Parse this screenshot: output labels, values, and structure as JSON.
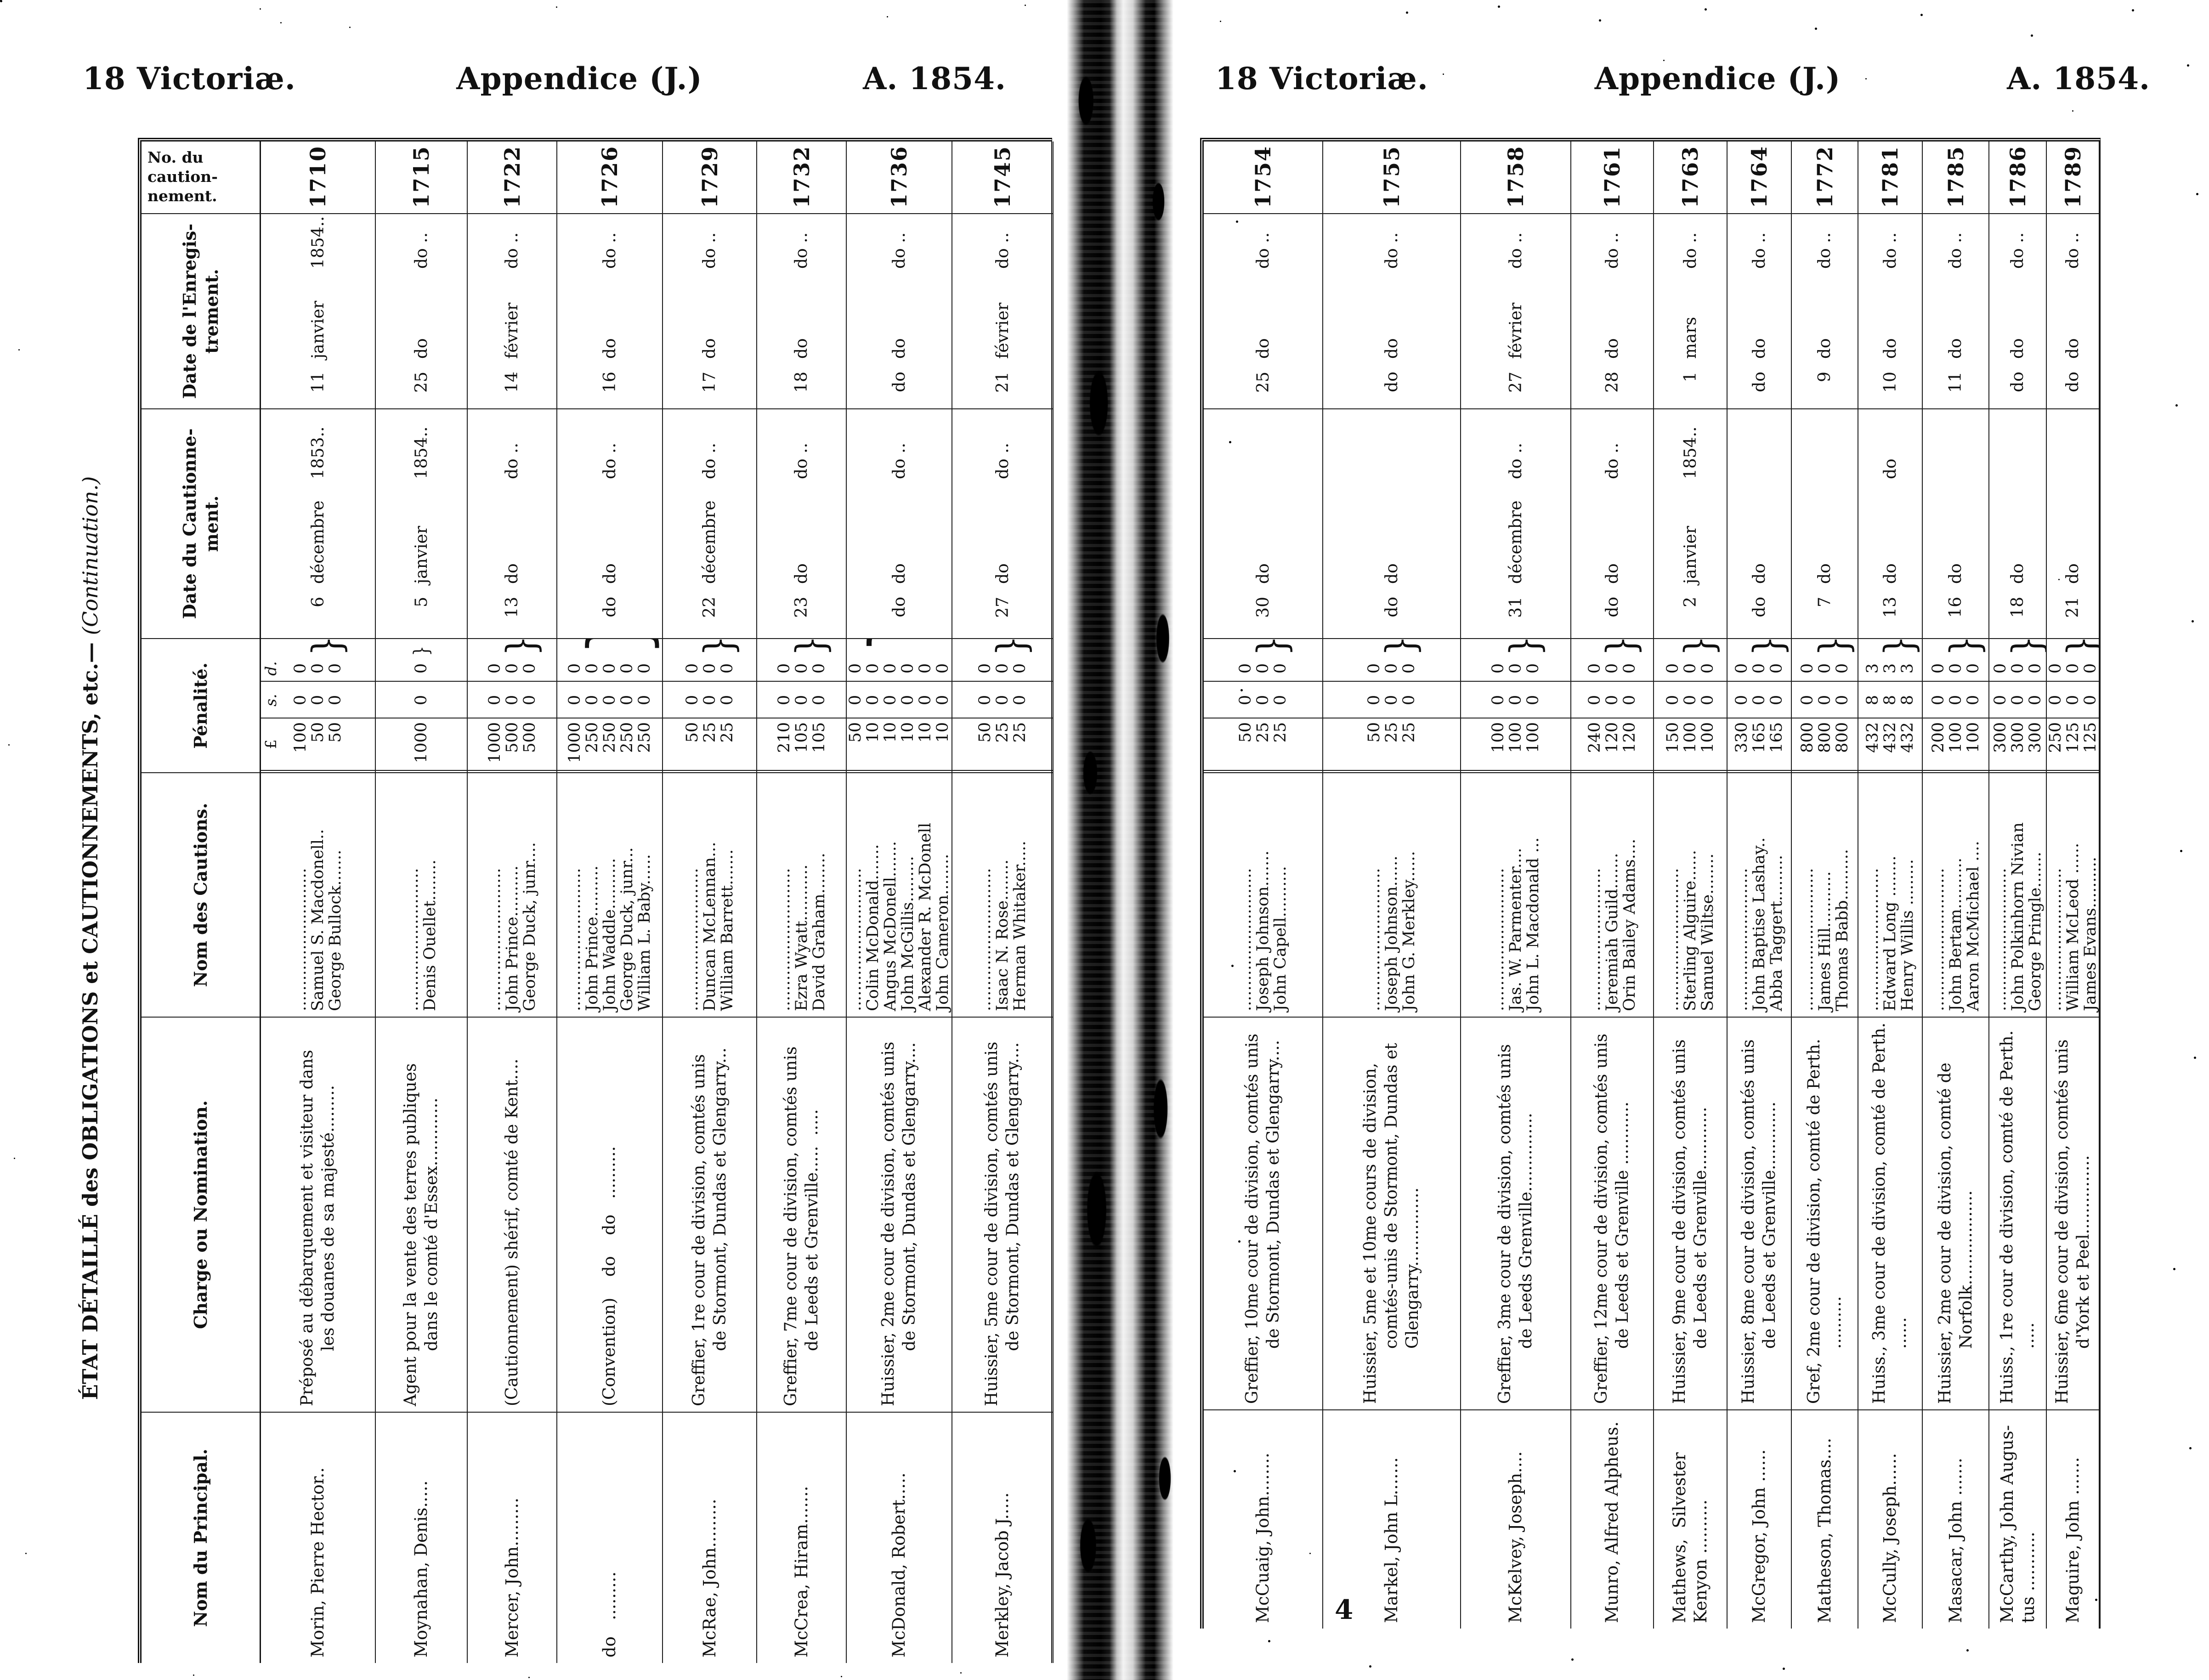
{
  "pages": {
    "left": {
      "headline": {
        "victoria": "18 Victoriæ.",
        "appendice": "Appendice (J.)",
        "year": "A. 1854."
      },
      "sidebar_title": {
        "main": "ÉTAT DÉTAILLÉ des OBLIGATIONS et CAUTIONNEMENTS, etc.—",
        "continuation": "(Continuation.)"
      },
      "records": [
        {
          "no": "1710",
          "principal": [
            "Morin, Pierre Hector.."
          ],
          "charge": [
            "Préposé au débarquement et visiteur dans",
            "les douanes de sa majesté........."
          ],
          "cautions": [
            "............................",
            "Samuel S. Macdonell..",
            "George Bullock......."
          ],
          "penalty": [
            [
              "100",
              "0",
              "0"
            ],
            [
              "50",
              "0",
              "0"
            ],
            [
              "50",
              "0",
              "0"
            ]
          ],
          "date_caution": {
            "day": "6",
            "month": "décembre",
            "year": "1853.."
          },
          "date_enreg": {
            "day": "11",
            "month": "janvier",
            "year": "1854.."
          }
        },
        {
          "no": "1715",
          "principal": [
            "Moynahan, Denis....."
          ],
          "charge": [
            "Agent pour la vente des terres publiques",
            "dans le comté d'Essex............."
          ],
          "cautions": [
            "............................",
            "Denis Ouellet........"
          ],
          "penalty": [
            [
              "1000",
              "0",
              "0"
            ]
          ],
          "date_caution": {
            "day": "5",
            "month": "janvier",
            "year": "1854.."
          },
          "date_enreg": {
            "day": "25",
            "month": "do",
            "year": "do .."
          }
        },
        {
          "no": "1722",
          "principal": [
            "Mercer, John........."
          ],
          "charge": [
            "(Cautionnement) shérif, comté de Kent...."
          ],
          "cautions": [
            "............................",
            "John Prince..........",
            "George Duck, junr...."
          ],
          "penalty": [
            [
              "1000",
              "0",
              "0"
            ],
            [
              "500",
              "0",
              "0"
            ],
            [
              "500",
              "0",
              "0"
            ]
          ],
          "date_caution": {
            "day": "13",
            "month": "do",
            "year": "do .."
          },
          "date_enreg": {
            "day": "14",
            "month": "février",
            "year": "do .."
          }
        },
        {
          "no": "1726",
          "principal": [
            "do   ........."
          ],
          "charge": [
            "(Convention)    do    do   .........."
          ],
          "cautions": [
            "............................",
            "John Prince..........",
            "John Waddle..........",
            "George Duck, junr...",
            "William L. Baby......"
          ],
          "penalty": [
            [
              "1000",
              "0",
              "0"
            ],
            [
              "250",
              "0",
              "0"
            ],
            [
              "250",
              "0",
              "0"
            ],
            [
              "250",
              "0",
              "0"
            ],
            [
              "250",
              "0",
              "0"
            ]
          ],
          "date_caution": {
            "day": "do",
            "month": "do",
            "year": "do .."
          },
          "date_enreg": {
            "day": "16",
            "month": "do",
            "year": "do .."
          }
        },
        {
          "no": "1729",
          "principal": [
            "McRae, John........."
          ],
          "charge": [
            "Greffier, 1re cour de division, comtés unis",
            "de Stormont, Dundas et Glengarry..."
          ],
          "cautions": [
            "............................",
            "Duncan McLennan...",
            "William Barrett......."
          ],
          "penalty": [
            [
              "50",
              "0",
              "0"
            ],
            [
              "25",
              "0",
              "0"
            ],
            [
              "25",
              "0",
              "0"
            ]
          ],
          "date_caution": {
            "day": "22",
            "month": "décembre",
            "year": "do .."
          },
          "date_enreg": {
            "day": "17",
            "month": "do",
            "year": "do .."
          }
        },
        {
          "no": "1732",
          "principal": [
            "McCrea, Hiram......."
          ],
          "charge": [
            "Greffier, 7me cour de division, comtés unis",
            "de Leeds et Grenville.....  ....."
          ],
          "cautions": [
            "............................",
            "Ezra Wyatt...........",
            "David Graham........"
          ],
          "penalty": [
            [
              "210",
              "0",
              "0"
            ],
            [
              "105",
              "0",
              "0"
            ],
            [
              "105",
              "0",
              "0"
            ]
          ],
          "date_caution": {
            "day": "23",
            "month": "do",
            "year": "do .."
          },
          "date_enreg": {
            "day": "18",
            "month": "do",
            "year": "do .."
          }
        },
        {
          "no": "1736",
          "principal": [
            "McDonald, Robert....."
          ],
          "charge": [
            "Huissier, 2me cour de division, comtés unis",
            "de Stormont, Dundas et Glengarry...."
          ],
          "cautions": [
            "............................",
            "Colin McDonald.......",
            "Angus McDonell.......",
            "John McGillis.........",
            "Alexander R. McDonell",
            "John Cameron........"
          ],
          "penalty": [
            [
              "50",
              "0",
              "0"
            ],
            [
              "10",
              "0",
              "0"
            ],
            [
              "10",
              "0",
              "0"
            ],
            [
              "10",
              "0",
              "0"
            ],
            [
              "10",
              "0",
              "0"
            ],
            [
              "10",
              "0",
              "0"
            ]
          ],
          "date_caution": {
            "day": "do",
            "month": "do",
            "year": "do .."
          },
          "date_enreg": {
            "day": "do",
            "month": "do",
            "year": "do .."
          }
        },
        {
          "no": "1745",
          "principal": [
            "Merkley, Jacob J....."
          ],
          "charge": [
            "Huissier, 5me cour de division, comtés unis",
            "de Stormont, Dundas et Glengarry...."
          ],
          "cautions": [
            "............................",
            "Isaac N. Rose........",
            "Herman Whitaker....."
          ],
          "penalty": [
            [
              "50",
              "0",
              "0"
            ],
            [
              "25",
              "0",
              "0"
            ],
            [
              "25",
              "0",
              "0"
            ]
          ],
          "date_caution": {
            "day": "27",
            "month": "do",
            "year": "do .."
          },
          "date_enreg": {
            "day": "21",
            "month": "février",
            "year": "do .."
          }
        }
      ]
    },
    "right": {
      "headline": {
        "victoria": "18 Victoriæ.",
        "appendice": "Appendice (J.)",
        "year": "A. 1854."
      },
      "page_number": "4",
      "records": [
        {
          "no": "1754",
          "principal": [
            "McCuaig, John........"
          ],
          "charge": [
            "Greffier, 10me cour de division, comtés unis",
            "de Stormont, Dundas et Glengarry...."
          ],
          "cautions": [
            "............................",
            "Joseph Johnson.......",
            "John Capell.........."
          ],
          "penalty": [
            [
              "50",
              "0",
              "0"
            ],
            [
              "25",
              "0",
              "0"
            ],
            [
              "25",
              "0",
              "0"
            ]
          ],
          "date_caution": {
            "day": "30",
            "month": "do",
            "year": ""
          },
          "date_enreg": {
            "day": "25",
            "month": "do",
            "year": "do .."
          }
        },
        {
          "no": "1755",
          "principal": [
            "Markel, John L......."
          ],
          "charge": [
            "Huissier, 5me et 10me cours de division,",
            "comtés-unis de Stormont, Dundas et",
            "Glengarry..............."
          ],
          "cautions": [
            "............................",
            "Joseph Johnson......",
            "John G. Merkley......"
          ],
          "penalty": [
            [
              "50",
              "0",
              "0"
            ],
            [
              "25",
              "0",
              "0"
            ],
            [
              "25",
              "0",
              "0"
            ]
          ],
          "date_caution": {
            "day": "do",
            "month": "do",
            "year": ""
          },
          "date_enreg": {
            "day": "do",
            "month": "do",
            "year": "do .."
          }
        },
        {
          "no": "1758",
          "principal": [
            "McKelvey, Joseph...."
          ],
          "charge": [
            "Greffier, 3me cour de division, comtés unis",
            "de Leeds Grenville..............."
          ],
          "cautions": [
            "............................",
            "Jas. W. Parmenter....",
            "John L. Macdonald ..."
          ],
          "penalty": [
            [
              "100",
              "0",
              "0"
            ],
            [
              "100",
              "0",
              "0"
            ],
            [
              "100",
              "0",
              "0"
            ]
          ],
          "date_caution": {
            "day": "31",
            "month": "décembre",
            "year": "do .."
          },
          "date_enreg": {
            "day": "27",
            "month": "février",
            "year": "do .."
          }
        },
        {
          "no": "1761",
          "principal": [
            "Munro, Alfred Alpheus."
          ],
          "charge": [
            "Greffier, 12me cour de division, comtés unis",
            "de Leeds et Grenville ............"
          ],
          "cautions": [
            "............................",
            "Jeremiah Guild.......",
            "Orin Bailey Adams...."
          ],
          "penalty": [
            [
              "240",
              "0",
              "0"
            ],
            [
              "120",
              "0",
              "0"
            ],
            [
              "120",
              "0",
              "0"
            ]
          ],
          "date_caution": {
            "day": "do",
            "month": "do",
            "year": "do .."
          },
          "date_enreg": {
            "day": "28",
            "month": "do",
            "year": "do .."
          }
        },
        {
          "no": "1763",
          "principal": [
            "Mathews,  Silvester",
            "Kenyon .........."
          ],
          "charge": [
            "Huissier, 9me cour de division, comtés unis",
            "de Leeds et Grenville............"
          ],
          "cautions": [
            "............................",
            "Sterling Alguire......",
            "Samuel Wiltse........"
          ],
          "penalty": [
            [
              "150",
              "0",
              "0"
            ],
            [
              "100",
              "0",
              "0"
            ],
            [
              "100",
              "0",
              "0"
            ]
          ],
          "date_caution": {
            "day": "2",
            "month": "janvier",
            "year": "1854.."
          },
          "date_enreg": {
            "day": "1",
            "month": "mars",
            "year": "do .."
          }
        },
        {
          "no": "1764",
          "principal": [
            "McGregor, John ......"
          ],
          "charge": [
            "Huissier, 8me cour de division, comtés unis",
            "de Leeds et Grenville............."
          ],
          "cautions": [
            "............................",
            "John Baptise Lashay..",
            "Abba Taggert........."
          ],
          "penalty": [
            [
              "330",
              "0",
              "0"
            ],
            [
              "165",
              "0",
              "0"
            ],
            [
              "165",
              "0",
              "0"
            ]
          ],
          "date_caution": {
            "day": "do",
            "month": "do",
            "year": ""
          },
          "date_enreg": {
            "day": "do",
            "month": "do",
            "year": "do .."
          }
        },
        {
          "no": "1772",
          "principal": [
            "Matheson, Thomas...."
          ],
          "charge": [
            "Gref, 2me cour de division, comté de Perth.",
            ".........."
          ],
          "cautions": [
            "............................",
            "James Hill...........",
            "Thomas Babb.........."
          ],
          "penalty": [
            [
              "800",
              "0",
              "0"
            ],
            [
              "800",
              "0",
              "0"
            ],
            [
              "800",
              "0",
              "0"
            ]
          ],
          "date_caution": {
            "day": "7",
            "month": "do",
            "year": ""
          },
          "date_enreg": {
            "day": "9",
            "month": "do",
            "year": "do .."
          }
        },
        {
          "no": "1781",
          "principal": [
            "McCully, Joseph......"
          ],
          "charge": [
            "Huiss., 3me cour de division, comté de Perth.",
            "......"
          ],
          "cautions": [
            "............................",
            "Edward Long ........",
            "Henry Willis ........."
          ],
          "penalty": [
            [
              "432",
              "8",
              "3"
            ],
            [
              "432",
              "8",
              "3"
            ],
            [
              "432",
              "8",
              "3"
            ]
          ],
          "date_caution": {
            "day": "13",
            "month": "do",
            "year": "do"
          },
          "date_enreg": {
            "day": "10",
            "month": "do",
            "year": "do .."
          }
        },
        {
          "no": "1785",
          "principal": [
            "Masacar, John ......."
          ],
          "charge": [
            "Huissier, 2me cour de division, comté de",
            "Norfolk.................."
          ],
          "cautions": [
            "............................",
            "John Bertam..........",
            "Aaron McMichael ...."
          ],
          "penalty": [
            [
              "200",
              "0",
              "0"
            ],
            [
              "100",
              "0",
              "0"
            ],
            [
              "100",
              "0",
              "0"
            ]
          ],
          "date_caution": {
            "day": "16",
            "month": "do",
            "year": ""
          },
          "date_enreg": {
            "day": "11",
            "month": "do",
            "year": "do .."
          }
        },
        {
          "no": "1786",
          "principal": [
            "McCarthy, John Augus-",
            "tus ..........."
          ],
          "charge": [
            "Huiss., 1re cour de division, comté de Perth.",
            "....."
          ],
          "cautions": [
            "............................",
            "John Polkinhorn Nivian",
            "George Pringle......."
          ],
          "penalty": [
            [
              "300",
              "0",
              "0"
            ],
            [
              "300",
              "0",
              "0"
            ],
            [
              "300",
              "0",
              "0"
            ]
          ],
          "date_caution": {
            "day": "18",
            "month": "do",
            "year": ""
          },
          "date_enreg": {
            "day": "do",
            "month": "do",
            "year": "do .."
          }
        },
        {
          "no": "1789",
          "principal": [
            "Maguire, John ......."
          ],
          "charge": [
            "Huissier, 6me cour de division, comtés unis",
            "d'York et Peel..............."
          ],
          "cautions": [
            "............................",
            "William McLeod ......",
            "James Evans.........."
          ],
          "penalty": [
            [
              "250",
              "0",
              "0"
            ],
            [
              "125",
              "0",
              "0"
            ],
            [
              "125",
              "0",
              "0"
            ]
          ],
          "date_caution": {
            "day": "21",
            "month": "do",
            "year": ""
          },
          "date_enreg": {
            "day": "do",
            "month": "do",
            "year": "do .."
          }
        }
      ]
    }
  },
  "table_headers": {
    "no_lines": [
      "No. du",
      "caution-",
      "nement."
    ],
    "enregistrement_lines": [
      "Date de l'Enregis-",
      "trement."
    ],
    "cautionnement_lines": [
      "Date du Cautionne-",
      "ment."
    ],
    "penalite": "Pénalité.",
    "cautions": "Nom des Cautions.",
    "charge": "Charge ou Nomination.",
    "principal": "Nom du Principal."
  },
  "currency": {
    "pound": "£",
    "shilling": "s.",
    "pence": "d."
  }
}
